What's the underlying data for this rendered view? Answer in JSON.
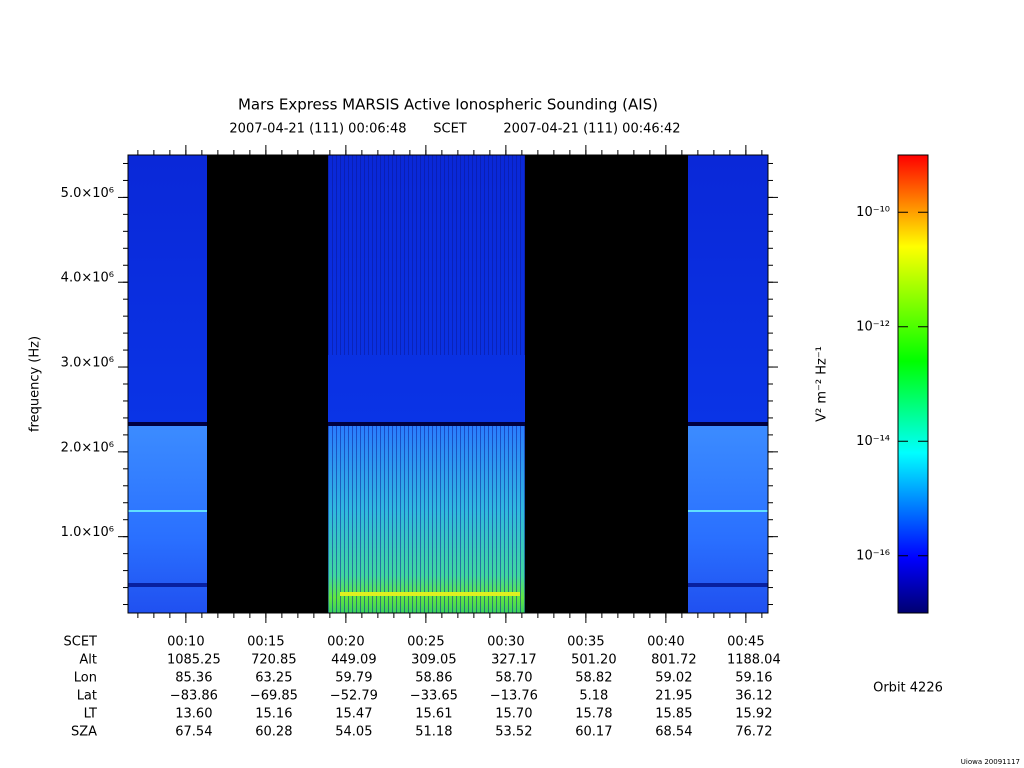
{
  "chart_data": {
    "type": "spectrogram",
    "title": "Mars Express MARSIS Active Ionospheric Sounding (AIS)",
    "subtitle_start": "2007-04-21 (111) 00:06:48",
    "subtitle_mid": "SCET",
    "subtitle_end": "2007-04-21 (111) 00:46:42",
    "ylabel": "frequency (Hz)",
    "ylim": [
      100000,
      5500000
    ],
    "yticks": [
      {
        "value": 1000000,
        "label": "1.0×10⁶"
      },
      {
        "value": 2000000,
        "label": "2.0×10⁶"
      },
      {
        "value": 3000000,
        "label": "3.0×10⁶"
      },
      {
        "value": 4000000,
        "label": "4.0×10⁶"
      },
      {
        "value": 5000000,
        "label": "5.0×10⁶"
      }
    ],
    "xlim": [
      383,
      2783
    ],
    "xticks": [
      {
        "value": 600,
        "label": "00:10"
      },
      {
        "value": 900,
        "label": "00:15"
      },
      {
        "value": 1200,
        "label": "00:20"
      },
      {
        "value": 1500,
        "label": "00:25"
      },
      {
        "value": 1800,
        "label": "00:30"
      },
      {
        "value": 2100,
        "label": "00:35"
      },
      {
        "value": 2400,
        "label": "00:40"
      },
      {
        "value": 2700,
        "label": "00:45"
      }
    ],
    "xaxis_label": "SCET",
    "ephemeris": [
      {
        "name": "Alt",
        "values": [
          "1085.25",
          "720.85",
          "449.09",
          "309.05",
          "327.17",
          "501.20",
          "801.72",
          "1188.04"
        ]
      },
      {
        "name": "Lon",
        "values": [
          "85.36",
          "63.25",
          "59.79",
          "58.86",
          "58.70",
          "58.82",
          "59.02",
          "59.16"
        ]
      },
      {
        "name": "Lat",
        "values": [
          "−83.86",
          "−69.85",
          "−52.79",
          "−33.65",
          "−13.76",
          "5.18",
          "21.95",
          "36.12"
        ]
      },
      {
        "name": "LT",
        "values": [
          "13.60",
          "15.16",
          "15.47",
          "15.61",
          "15.70",
          "15.78",
          "15.85",
          "15.92"
        ]
      },
      {
        "name": "SZA",
        "values": [
          "67.54",
          "60.28",
          "54.05",
          "51.18",
          "53.52",
          "60.17",
          "68.54",
          "76.72"
        ]
      }
    ],
    "zlim": [
      1e-17,
      1e-09
    ],
    "zlog": true,
    "zticks": [
      {
        "value": 1e-10,
        "label": "10⁻¹⁰"
      },
      {
        "value": 1e-12,
        "label": "10⁻¹²"
      },
      {
        "value": 1e-14,
        "label": "10⁻¹⁴"
      },
      {
        "value": 1e-16,
        "label": "10⁻¹⁶"
      }
    ],
    "zlabel": "V² m⁻² Hz⁻¹",
    "orbit": "Orbit 4226",
    "credit": "Uiowa 20091117"
  }
}
